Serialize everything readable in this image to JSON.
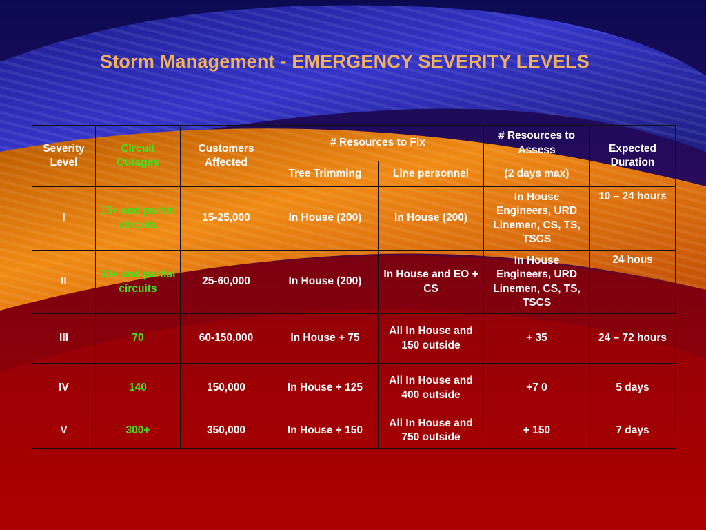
{
  "slide": {
    "title": "Storm Management - EMERGENCY SEVERITY LEVELS"
  },
  "table": {
    "headers": {
      "severity_level": "Severity Level",
      "circuit_outages": "Circuit Outages",
      "customers_affected": "Customers Affected",
      "resources_to_fix": "# Resources to Fix",
      "tree_trimming": "Tree Trimming",
      "line_personnel": "Line personnel",
      "resources_to_assess": "# Resources to Assess",
      "assess_note": "(2 days max)",
      "expected_duration": "Expected Duration"
    },
    "rows": [
      {
        "level": "I",
        "outages": "15+  and partial circuits",
        "customers": "15-25,000",
        "tree": "In House (200)",
        "line": "In House (200)",
        "assess": "In House Engineers, URD Linemen, CS, TS, TSCS",
        "duration": "10 – 24 hours"
      },
      {
        "level": "II",
        "outages": "30+ and partial circuits",
        "customers": "25-60,000",
        "tree": "In House (200)",
        "line": "In House and EO + CS",
        "assess": "In House Engineers, URD Linemen, CS, TS, TSCS",
        "duration": "24 hous"
      },
      {
        "level": "III",
        "outages": "70",
        "customers": "60-150,000",
        "tree": "In House + 75",
        "line": "All In House and 150 outside",
        "assess": "+ 35",
        "duration": "24 – 72 hours"
      },
      {
        "level": "IV",
        "outages": "140",
        "customers": "150,000",
        "tree": "In House + 125",
        "line": "All In House and 400 outside",
        "assess": "+7 0",
        "duration": "5 days"
      },
      {
        "level": "V",
        "outages": "300+",
        "customers": "350,000",
        "tree": "In House + 150",
        "line": "All In House and 750 outside",
        "assess": "+ 150",
        "duration": "7 days"
      }
    ]
  },
  "colors": {
    "title": "#f2b05c",
    "highlight_text": "#44e020",
    "body_text": "#ffffff",
    "grid_lines": "#111111",
    "bg_navy": "#0a0a52",
    "bg_blue": "#2626b8",
    "bg_orange": "#e07a0c",
    "bg_red": "#a20000"
  }
}
